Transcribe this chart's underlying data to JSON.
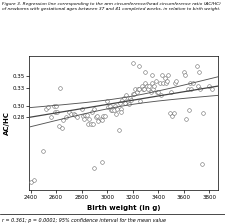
{
  "title": "Figure 3. Regression line corresponding to the arm circumference/head circumference ratio (AC/HC) of newborns with gestational ages between 37 and 41 completed weeks, in relation to birth weight.",
  "xlabel": "Birth weight (in g)",
  "ylabel": "AC/HC",
  "xlim": [
    2390,
    3870
  ],
  "ylim": [
    0.155,
    0.385
  ],
  "xticks": [
    2400,
    2600,
    2800,
    3000,
    3200,
    3400,
    3600,
    3800
  ],
  "yticks": [
    0.28,
    0.3,
    0.33,
    0.35
  ],
  "footer": "r = 0.361; p = 0.0001; 95% confidence interval for the mean value",
  "scatter_color": "white",
  "scatter_edge": "#555555",
  "line_color": "#444444",
  "ci_color": "#555555",
  "scatter_points": [
    [
      2400,
      0.17
    ],
    [
      2430,
      0.172
    ],
    [
      2500,
      0.222
    ],
    [
      2520,
      0.295
    ],
    [
      2540,
      0.298
    ],
    [
      2560,
      0.28
    ],
    [
      2580,
      0.3
    ],
    [
      2590,
      0.29
    ],
    [
      2600,
      0.3
    ],
    [
      2610,
      0.29
    ],
    [
      2620,
      0.265
    ],
    [
      2630,
      0.33
    ],
    [
      2650,
      0.262
    ],
    [
      2655,
      0.275
    ],
    [
      2680,
      0.28
    ],
    [
      2700,
      0.29
    ],
    [
      2720,
      0.285
    ],
    [
      2740,
      0.285
    ],
    [
      2750,
      0.284
    ],
    [
      2760,
      0.28
    ],
    [
      2800,
      0.295
    ],
    [
      2810,
      0.283
    ],
    [
      2820,
      0.278
    ],
    [
      2830,
      0.284
    ],
    [
      2840,
      0.284
    ],
    [
      2850,
      0.268
    ],
    [
      2860,
      0.278
    ],
    [
      2870,
      0.268
    ],
    [
      2880,
      0.29
    ],
    [
      2890,
      0.268
    ],
    [
      2900,
      0.295
    ],
    [
      2910,
      0.28
    ],
    [
      2920,
      0.283
    ],
    [
      2930,
      0.273
    ],
    [
      2950,
      0.278
    ],
    [
      2960,
      0.275
    ],
    [
      2970,
      0.283
    ],
    [
      2980,
      0.283
    ],
    [
      3000,
      0.308
    ],
    [
      3010,
      0.298
    ],
    [
      3020,
      0.3
    ],
    [
      3030,
      0.293
    ],
    [
      3040,
      0.293
    ],
    [
      3050,
      0.293
    ],
    [
      3060,
      0.3
    ],
    [
      3070,
      0.285
    ],
    [
      3080,
      0.295
    ],
    [
      3090,
      0.258
    ],
    [
      3100,
      0.305
    ],
    [
      3105,
      0.295
    ],
    [
      3110,
      0.29
    ],
    [
      3120,
      0.31
    ],
    [
      3130,
      0.313
    ],
    [
      3140,
      0.305
    ],
    [
      3150,
      0.318
    ],
    [
      3160,
      0.308
    ],
    [
      3170,
      0.303
    ],
    [
      3180,
      0.313
    ],
    [
      3190,
      0.31
    ],
    [
      3200,
      0.32
    ],
    [
      3210,
      0.32
    ],
    [
      3220,
      0.328
    ],
    [
      3230,
      0.323
    ],
    [
      3240,
      0.328
    ],
    [
      3250,
      0.328
    ],
    [
      3260,
      0.308
    ],
    [
      3270,
      0.333
    ],
    [
      3280,
      0.328
    ],
    [
      3290,
      0.328
    ],
    [
      3300,
      0.338
    ],
    [
      3310,
      0.333
    ],
    [
      3320,
      0.328
    ],
    [
      3330,
      0.333
    ],
    [
      3340,
      0.323
    ],
    [
      3350,
      0.338
    ],
    [
      3360,
      0.328
    ],
    [
      3370,
      0.333
    ],
    [
      3380,
      0.343
    ],
    [
      3390,
      0.323
    ],
    [
      3400,
      0.323
    ],
    [
      3410,
      0.338
    ],
    [
      3420,
      0.318
    ],
    [
      3430,
      0.353
    ],
    [
      3440,
      0.338
    ],
    [
      3450,
      0.348
    ],
    [
      3460,
      0.338
    ],
    [
      3470,
      0.343
    ],
    [
      3480,
      0.353
    ],
    [
      3490,
      0.288
    ],
    [
      3500,
      0.323
    ],
    [
      3510,
      0.283
    ],
    [
      3520,
      0.288
    ],
    [
      3530,
      0.338
    ],
    [
      3540,
      0.343
    ],
    [
      3600,
      0.358
    ],
    [
      3610,
      0.353
    ],
    [
      3620,
      0.278
    ],
    [
      3630,
      0.328
    ],
    [
      3640,
      0.293
    ],
    [
      3650,
      0.338
    ],
    [
      3660,
      0.328
    ],
    [
      3670,
      0.338
    ],
    [
      3700,
      0.368
    ],
    [
      3710,
      0.333
    ],
    [
      3720,
      0.358
    ],
    [
      3730,
      0.328
    ],
    [
      3740,
      0.2
    ],
    [
      3750,
      0.288
    ],
    [
      3800,
      0.333
    ],
    [
      3820,
      0.328
    ],
    [
      3200,
      0.373
    ],
    [
      3250,
      0.368
    ],
    [
      3300,
      0.358
    ],
    [
      3350,
      0.353
    ],
    [
      2900,
      0.193
    ],
    [
      2960,
      0.203
    ]
  ],
  "regression_slope": 3.62e-05,
  "regression_intercept": 0.1935,
  "ci_slope_upper": 6.2e-05,
  "ci_intercept_upper": 0.169,
  "ci_slope_lower": 1.04e-05,
  "ci_intercept_lower": 0.218
}
